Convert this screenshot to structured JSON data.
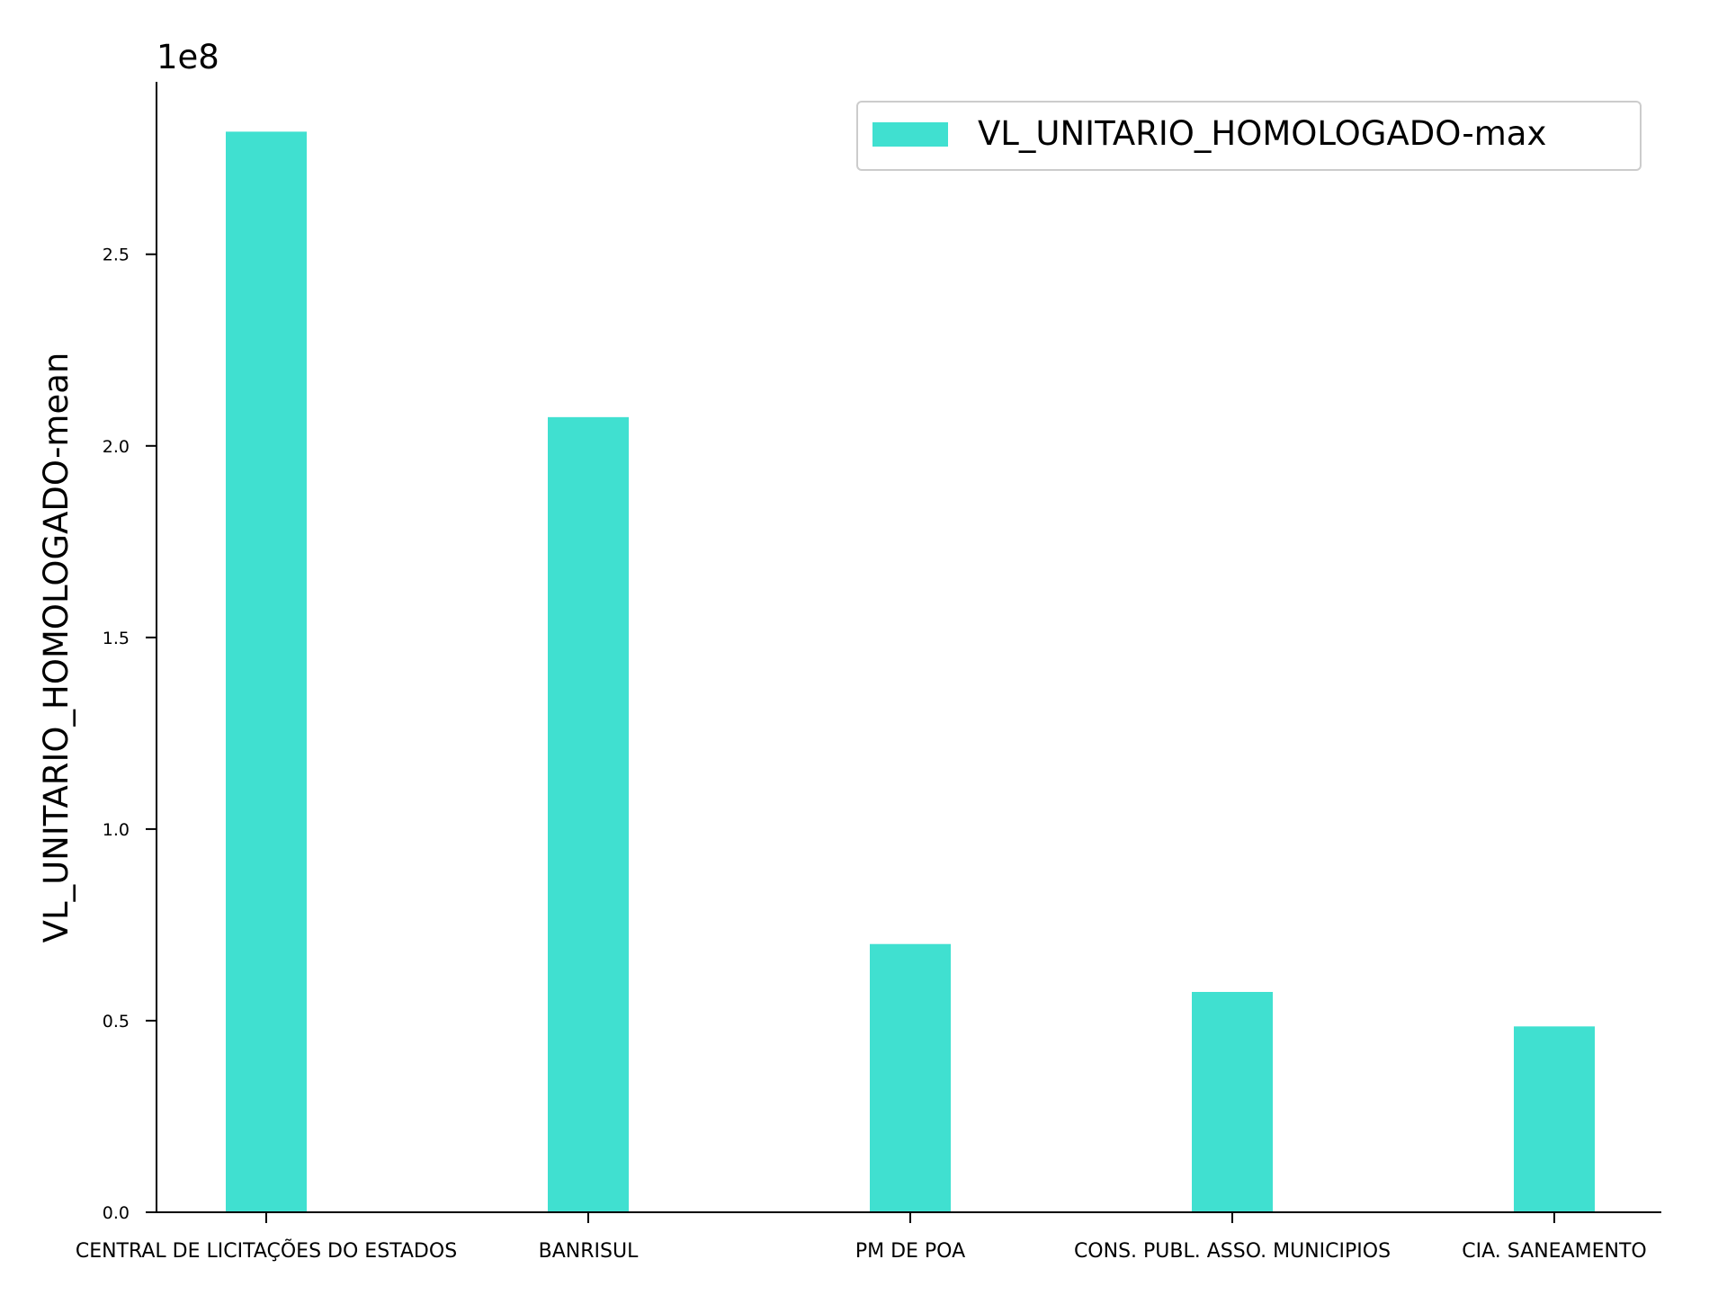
{
  "chart_data": {
    "type": "bar",
    "title": "",
    "xlabel": "",
    "ylabel": "VL_UNITARIO_HOMOLOGADO-mean",
    "y_offset_label": "1e8",
    "ylim": [
      0,
      2.95
    ],
    "yticks": [
      0.0,
      0.5,
      1.0,
      1.5,
      2.0,
      2.5
    ],
    "ytick_labels": [
      "0.0",
      "0.5",
      "1.0",
      "1.5",
      "2.0",
      "2.5"
    ],
    "categories": [
      "CENTRAL DE LICITAÇÕES DO ESTADOS",
      "BANRISUL",
      "PM DE POA",
      "CONS. PUBL. ASSO. MUNICIPIOS",
      "CIA. SANEAMENTO"
    ],
    "series": [
      {
        "name": "VL_UNITARIO_HOMOLOGADO-max",
        "values": [
          2.82,
          2.075,
          0.7,
          0.575,
          0.485
        ],
        "color": "#40E0D0"
      }
    ],
    "legend_position": "top-right",
    "grid": false
  }
}
